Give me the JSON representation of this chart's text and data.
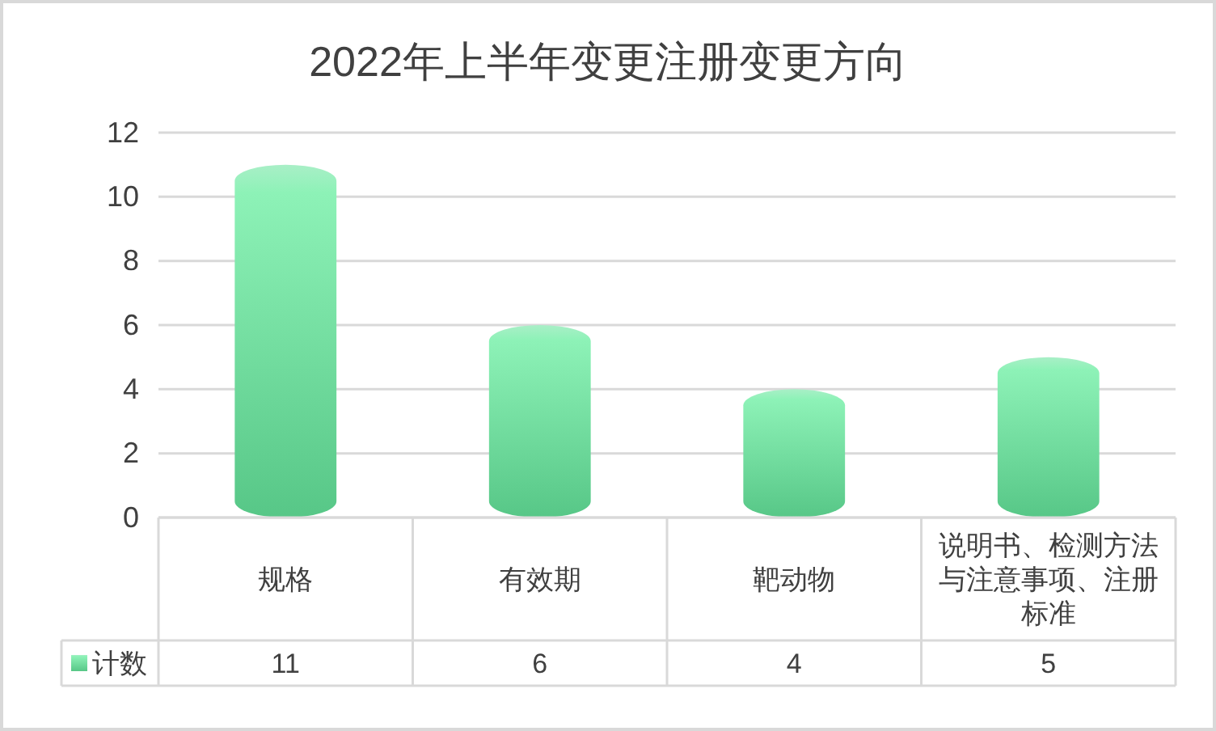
{
  "chart_data": {
    "type": "bar",
    "title": "2022年上半年变更注册变更方向",
    "categories": [
      "规格",
      "有效期",
      "靶动物",
      "说明书、检测方法与注意事项、注册标准"
    ],
    "series": [
      {
        "name": "计数",
        "color": "#63e199",
        "values": [
          11,
          6,
          4,
          5
        ]
      }
    ],
    "ylim": [
      0,
      12
    ],
    "yticks": [
      0,
      2,
      4,
      6,
      8,
      10,
      12
    ],
    "grid": "y",
    "legend": "bottom",
    "data_labels": true
  }
}
